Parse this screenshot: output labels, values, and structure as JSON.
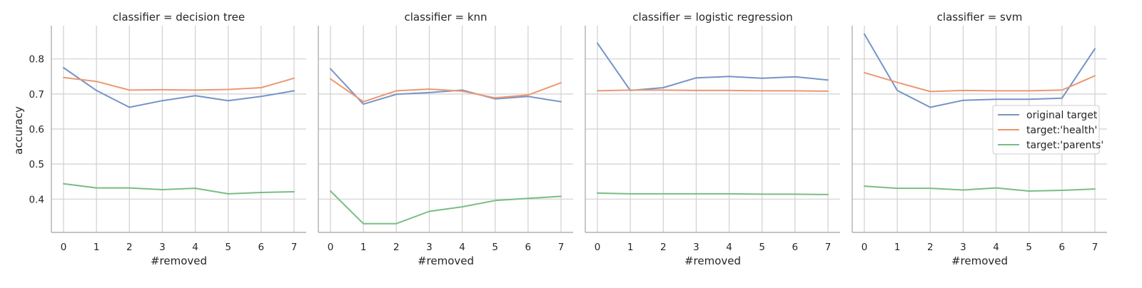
{
  "chart_data": {
    "type": "line",
    "ylabel": "accuracy",
    "xlabel": "#removed",
    "x": [
      0,
      1,
      2,
      3,
      4,
      5,
      6,
      7
    ],
    "ylim": [
      0.305,
      0.895
    ],
    "yticks": [
      0.4,
      0.5,
      0.6,
      0.7,
      0.8
    ],
    "grid": true,
    "legend": {
      "placement": "right-center of last panel",
      "entries": [
        "original target",
        "target:'health'",
        "target:'parents'"
      ]
    },
    "colors": {
      "original target": "#7594c8",
      "target:'health'": "#eb9872",
      "target:'parents'": "#79bd84",
      "grid": "#d0d0d0",
      "axis": "#b0b0b0"
    },
    "panels": [
      {
        "title": "classifier = decision tree",
        "series": [
          {
            "name": "original target",
            "values": [
              0.775,
              0.71,
              0.662,
              0.681,
              0.695,
              0.681,
              0.693,
              0.709
            ]
          },
          {
            "name": "target:'health'",
            "values": [
              0.747,
              0.736,
              0.711,
              0.712,
              0.711,
              0.713,
              0.718,
              0.745
            ]
          },
          {
            "name": "target:'parents'",
            "values": [
              0.444,
              0.432,
              0.432,
              0.427,
              0.431,
              0.415,
              0.419,
              0.421
            ]
          }
        ]
      },
      {
        "title": "classifier = knn",
        "series": [
          {
            "name": "original target",
            "values": [
              0.772,
              0.671,
              0.699,
              0.704,
              0.711,
              0.686,
              0.693,
              0.678
            ]
          },
          {
            "name": "target:'health'",
            "values": [
              0.743,
              0.678,
              0.709,
              0.714,
              0.708,
              0.689,
              0.697,
              0.732
            ]
          },
          {
            "name": "target:'parents'",
            "values": [
              0.423,
              0.33,
              0.33,
              0.365,
              0.378,
              0.396,
              0.402,
              0.408
            ]
          }
        ]
      },
      {
        "title": "classifier = logistic regression",
        "series": [
          {
            "name": "original target",
            "values": [
              0.845,
              0.71,
              0.718,
              0.746,
              0.75,
              0.745,
              0.749,
              0.74
            ]
          },
          {
            "name": "target:'health'",
            "values": [
              0.709,
              0.711,
              0.711,
              0.71,
              0.71,
              0.709,
              0.709,
              0.708
            ]
          },
          {
            "name": "target:'parents'",
            "values": [
              0.417,
              0.415,
              0.415,
              0.415,
              0.415,
              0.414,
              0.414,
              0.413
            ]
          }
        ]
      },
      {
        "title": "classifier = svm",
        "series": [
          {
            "name": "original target",
            "values": [
              0.871,
              0.71,
              0.662,
              0.682,
              0.685,
              0.685,
              0.688,
              0.829
            ]
          },
          {
            "name": "target:'health'",
            "values": [
              0.761,
              0.733,
              0.707,
              0.71,
              0.709,
              0.709,
              0.711,
              0.752
            ]
          },
          {
            "name": "target:'parents'",
            "values": [
              0.437,
              0.431,
              0.431,
              0.426,
              0.432,
              0.423,
              0.425,
              0.429
            ]
          }
        ]
      }
    ]
  }
}
